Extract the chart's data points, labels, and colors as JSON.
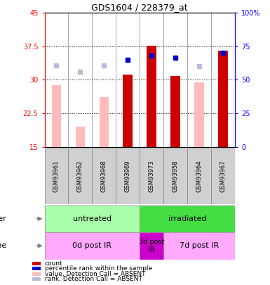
{
  "title": "GDS1604 / 228379_at",
  "samples": [
    "GSM93961",
    "GSM93962",
    "GSM93968",
    "GSM93969",
    "GSM93973",
    "GSM93958",
    "GSM93964",
    "GSM93967"
  ],
  "count_values": [
    null,
    null,
    null,
    31.2,
    37.7,
    30.8,
    null,
    36.5
  ],
  "count_absent": [
    28.8,
    19.5,
    26.2,
    null,
    null,
    null,
    29.5,
    null
  ],
  "rank_present": [
    null,
    null,
    null,
    34.5,
    35.5,
    35.0,
    null,
    36.0
  ],
  "rank_absent": [
    33.2,
    31.8,
    33.2,
    null,
    null,
    null,
    33.0,
    null
  ],
  "ylim": [
    15,
    45
  ],
  "y2lim": [
    0,
    100
  ],
  "yticks": [
    15,
    22.5,
    30,
    37.5,
    45
  ],
  "ytick_labels": [
    "15",
    "22.5",
    "30",
    "37.5",
    "45"
  ],
  "y2ticks": [
    0,
    25,
    50,
    75,
    100
  ],
  "y2tick_labels": [
    "0",
    "25",
    "50",
    "75",
    "100%"
  ],
  "group_other": [
    {
      "label": "untreated",
      "start": 0,
      "end": 4,
      "color": "#aaffaa"
    },
    {
      "label": "irradiated",
      "start": 4,
      "end": 8,
      "color": "#44dd44"
    }
  ],
  "group_time": [
    {
      "label": "0d post IR",
      "start": 0,
      "end": 4,
      "color": "#ffaaff"
    },
    {
      "label": "3d post\nIR",
      "start": 4,
      "end": 5,
      "color": "#cc00cc"
    },
    {
      "label": "7d post IR",
      "start": 5,
      "end": 8,
      "color": "#ffaaff"
    }
  ],
  "legend_items": [
    {
      "label": "count",
      "color": "#cc0000"
    },
    {
      "label": "percentile rank within the sample",
      "color": "#0000cc"
    },
    {
      "label": "value, Detection Call = ABSENT",
      "color": "#ffbbbb"
    },
    {
      "label": "rank, Detection Call = ABSENT",
      "color": "#bbbbdd"
    }
  ],
  "count_color": "#cc0000",
  "count_absent_color": "#ffbbbb",
  "rank_present_color": "#0000cc",
  "rank_absent_color": "#bbbbdd",
  "bar_width": 0.4
}
